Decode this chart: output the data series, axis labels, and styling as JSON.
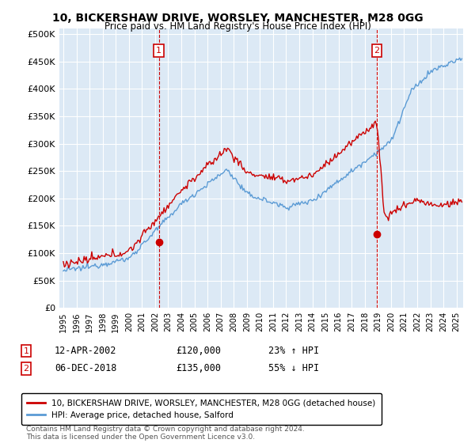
{
  "title": "10, BICKERSHAW DRIVE, WORSLEY, MANCHESTER, M28 0GG",
  "subtitle": "Price paid vs. HM Land Registry's House Price Index (HPI)",
  "yticks": [
    0,
    50000,
    100000,
    150000,
    200000,
    250000,
    300000,
    350000,
    400000,
    450000,
    500000
  ],
  "ytick_labels": [
    "£0",
    "£50K",
    "£100K",
    "£150K",
    "£200K",
    "£250K",
    "£300K",
    "£350K",
    "£400K",
    "£450K",
    "£500K"
  ],
  "xlim_start": 1994.7,
  "xlim_end": 2025.5,
  "ylim_min": 0,
  "ylim_max": 510000,
  "bg_color": "#ffffff",
  "plot_bg_color": "#dce9f5",
  "grid_color": "#ffffff",
  "hpi_line_color": "#5b9bd5",
  "price_line_color": "#cc0000",
  "sale1_x": 2002.28,
  "sale1_y": 120000,
  "sale1_date": "12-APR-2002",
  "sale1_price": 120000,
  "sale1_hpi_pct": "23%",
  "sale1_direction": "↑",
  "sale2_x": 2018.92,
  "sale2_y": 135000,
  "sale2_date": "06-DEC-2018",
  "sale2_price": 135000,
  "sale2_hpi_pct": "55%",
  "sale2_direction": "↓",
  "legend_label1": "10, BICKERSHAW DRIVE, WORSLEY, MANCHESTER, M28 0GG (detached house)",
  "legend_label2": "HPI: Average price, detached house, Salford",
  "footnote": "Contains HM Land Registry data © Crown copyright and database right 2024.\nThis data is licensed under the Open Government Licence v3.0.",
  "marker_box_color": "#cc0000"
}
